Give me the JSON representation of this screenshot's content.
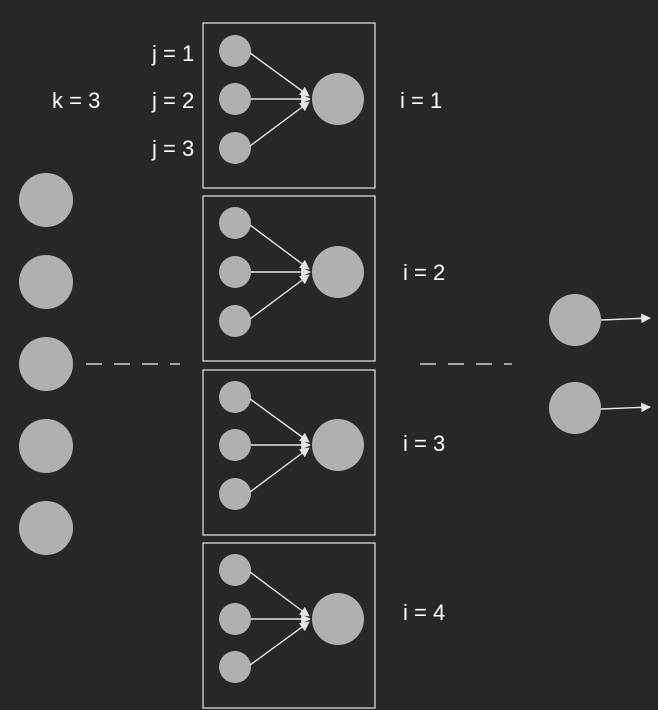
{
  "labels": {
    "k": "k = 3",
    "j": [
      "j = 1",
      "j = 2",
      "j = 3"
    ],
    "i": [
      "i = 1",
      "i = 2",
      "i = 3",
      "i = 4"
    ]
  },
  "diagram": {
    "input_node_count": 5,
    "block_count": 4,
    "inputs_per_block": 3,
    "output_node_count": 2,
    "colors": {
      "background": "#272727",
      "node": "#b0b0b0",
      "line": "#e6e6e6"
    }
  }
}
